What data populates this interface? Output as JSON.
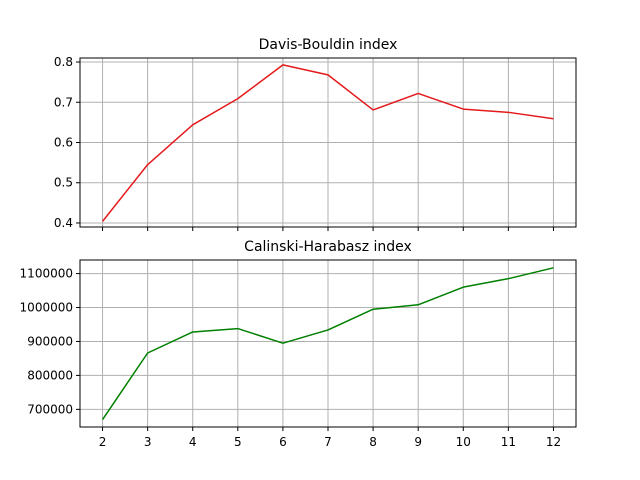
{
  "chart_data": [
    {
      "type": "line",
      "title": "Davis-Bouldin index",
      "xlabel": "",
      "ylabel": "",
      "x": [
        2,
        3,
        4,
        5,
        6,
        7,
        8,
        9,
        10,
        11,
        12
      ],
      "x_tick_labels_shown": false,
      "ylim": [
        0.39,
        0.81
      ],
      "yticks": [
        0.4,
        0.5,
        0.6,
        0.7,
        0.8
      ],
      "ytick_labels": [
        "0.4",
        "0.5",
        "0.6",
        "0.7",
        "0.8"
      ],
      "grid": true,
      "series": [
        {
          "color": "#e41a1c",
          "values": [
            0.404,
            0.545,
            0.644,
            0.709,
            0.793,
            0.768,
            0.681,
            0.722,
            0.683,
            0.675,
            0.659
          ]
        }
      ]
    },
    {
      "type": "line",
      "title": "Calinski-Harabasz index",
      "xlabel": "",
      "ylabel": "",
      "x": [
        2,
        3,
        4,
        5,
        6,
        7,
        8,
        9,
        10,
        11,
        12
      ],
      "xtick_labels": [
        "2",
        "3",
        "4",
        "5",
        "6",
        "7",
        "8",
        "9",
        "10",
        "11",
        "12"
      ],
      "ylim": [
        648000,
        1140000
      ],
      "yticks": [
        700000,
        800000,
        900000,
        1000000,
        1100000
      ],
      "ytick_labels": [
        "700000",
        "800000",
        "900000",
        "1000000",
        "1100000"
      ],
      "grid": true,
      "series": [
        {
          "color": "#008000",
          "values": [
            670000,
            866000,
            928000,
            938000,
            895000,
            934000,
            995000,
            1008000,
            1060000,
            1085000,
            1117000
          ]
        }
      ]
    }
  ]
}
